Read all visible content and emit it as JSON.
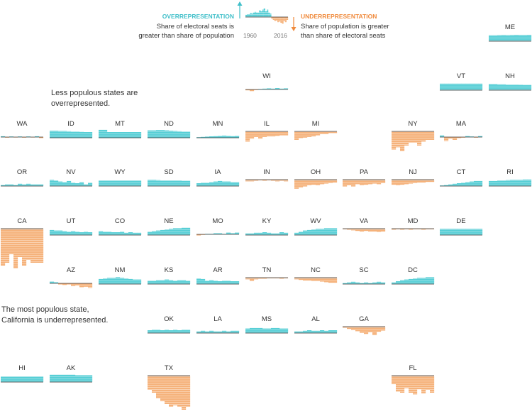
{
  "colors": {
    "over": "#58cfd6",
    "over_stripe": "#a7e5e9",
    "under": "#f5b27b",
    "under_stripe": "#fbd9bc",
    "axis": "#333333",
    "text": "#333333"
  },
  "legend": {
    "over_title": "OVERREPRESENTATION",
    "over_desc_1": "Share of electoral seats is",
    "over_desc_2": "greater than share of population",
    "under_title": "UNDERREPRESENTATION",
    "under_desc_1": "Share of population is greater",
    "under_desc_2": "than share of electoral seats",
    "year_start": "1960",
    "year_end": "2016"
  },
  "notes": {
    "small_1": "Less populous states are",
    "small_2": "overrepresented.",
    "large_1": "The most populous state,",
    "large_2": "California is underrepresented."
  },
  "chart_data": {
    "type": "small-multiples bar",
    "x_start": 1960,
    "x_end": 2016,
    "value_meaning": "representation gap; positive = over, negative = under (relative units)",
    "legend_example": [
      0.4,
      0.5,
      0.5,
      0.7,
      0.6,
      0.8,
      0.9,
      0.8,
      0.8,
      1.2,
      1.0,
      1.3,
      1.5,
      1.0,
      1.3,
      0.8,
      0.6,
      -0.3,
      -0.5,
      -0.7,
      -0.6,
      -0.9,
      -0.8,
      -1.0,
      -1.2,
      -0.7,
      -0.9,
      -0.5
    ],
    "states": [
      {
        "abbr": "ME",
        "values": [
          1.05,
          1.05,
          1.08,
          1.1,
          1.08,
          1.1,
          1.12,
          1.1,
          1.1,
          1.12
        ]
      },
      {
        "abbr": "WI",
        "values": [
          -0.15,
          -0.3,
          -0.1,
          0.1,
          0.15,
          0.2,
          0.15,
          0.25,
          0.15,
          0.2
        ]
      },
      {
        "abbr": "VT",
        "values": [
          1.15,
          1.15,
          1.15,
          1.15,
          1.15,
          1.15,
          1.15,
          1.15,
          1.15,
          1.15
        ]
      },
      {
        "abbr": "NH",
        "values": [
          1.1,
          1.1,
          1.05,
          1.05,
          1.0,
          1.0,
          1.0,
          0.98,
          0.95,
          0.95
        ]
      },
      {
        "abbr": "WA",
        "values": [
          0.15,
          -0.1,
          0.1,
          -0.05,
          0.1,
          -0.1,
          0.1,
          -0.05,
          0.15,
          -0.2
        ]
      },
      {
        "abbr": "ID",
        "values": [
          1.25,
          1.25,
          1.2,
          1.2,
          1.15,
          1.1,
          1.1,
          1.05,
          1.0,
          1.0
        ]
      },
      {
        "abbr": "MT",
        "values": [
          1.4,
          1.4,
          1.0,
          1.0,
          1.0,
          1.0,
          1.0,
          1.0,
          1.0,
          1.0
        ]
      },
      {
        "abbr": "ND",
        "values": [
          1.3,
          1.3,
          1.35,
          1.35,
          1.3,
          1.25,
          1.2,
          1.15,
          1.1,
          1.1
        ]
      },
      {
        "abbr": "MN",
        "values": [
          0.1,
          0.15,
          0.2,
          0.25,
          0.3,
          0.35,
          0.4,
          0.35,
          0.3,
          0.35
        ]
      },
      {
        "abbr": "IL",
        "values": [
          -1.8,
          -1.3,
          -1.0,
          -1.3,
          -1.0,
          -0.9,
          -0.9,
          -0.8,
          -0.7,
          -0.7
        ]
      },
      {
        "abbr": "MI",
        "values": [
          -1.5,
          -1.2,
          -1.1,
          -1.0,
          -0.9,
          -0.7,
          -0.5,
          -0.5,
          -0.3,
          -0.3
        ]
      },
      {
        "abbr": "NY",
        "values": [
          -3.2,
          -2.8,
          -3.5,
          -2.5,
          -2.0,
          -2.0,
          -2.5,
          -1.8,
          -1.5,
          -1.5
        ]
      },
      {
        "abbr": "MA",
        "values": [
          0.3,
          -0.7,
          -0.3,
          -0.5,
          -0.2,
          -0.1,
          0.2,
          0.1,
          -0.1,
          0.2
        ]
      },
      {
        "abbr": "OR",
        "values": [
          0.2,
          0.3,
          0.3,
          0.2,
          0.4,
          0.3,
          0.4,
          0.3,
          0.3,
          0.3
        ]
      },
      {
        "abbr": "NV",
        "values": [
          1.1,
          1.0,
          0.8,
          0.7,
          0.9,
          0.6,
          0.5,
          0.7,
          0.3,
          0.6
        ]
      },
      {
        "abbr": "WY",
        "values": [
          1.0,
          1.0,
          1.0,
          1.0,
          1.0,
          1.0,
          1.0,
          1.0,
          1.0,
          1.0
        ]
      },
      {
        "abbr": "SD",
        "values": [
          1.1,
          1.1,
          1.05,
          1.0,
          1.0,
          1.0,
          1.0,
          1.0,
          0.95,
          0.95
        ]
      },
      {
        "abbr": "IA",
        "values": [
          0.5,
          0.6,
          0.6,
          0.7,
          0.8,
          0.9,
          0.8,
          0.8,
          0.7,
          0.7
        ]
      },
      {
        "abbr": "IN",
        "values": [
          -0.3,
          -0.3,
          -0.2,
          -0.1,
          -0.2,
          -0.1,
          -0.2,
          -0.3,
          -0.2,
          -0.3
        ]
      },
      {
        "abbr": "OH",
        "values": [
          -1.6,
          -1.4,
          -1.2,
          -1.0,
          -0.9,
          -1.0,
          -0.8,
          -0.7,
          -0.6,
          -0.5
        ]
      },
      {
        "abbr": "PA",
        "values": [
          -1.2,
          -1.0,
          -1.2,
          -0.8,
          -1.0,
          -0.9,
          -0.8,
          -0.7,
          -0.8,
          -0.6
        ]
      },
      {
        "abbr": "NJ",
        "values": [
          -0.9,
          -1.0,
          -0.9,
          -0.8,
          -0.7,
          -0.6,
          -0.5,
          -0.5,
          -0.4,
          -0.4
        ]
      },
      {
        "abbr": "CT",
        "values": [
          0.1,
          0.2,
          0.3,
          0.4,
          0.5,
          0.6,
          0.7,
          0.8,
          0.9,
          0.9
        ]
      },
      {
        "abbr": "RI",
        "values": [
          0.9,
          0.9,
          1.0,
          1.0,
          1.05,
          1.1,
          1.1,
          1.1,
          1.15,
          1.15
        ]
      },
      {
        "abbr": "CA",
        "values": [
          -6.5,
          -6.0,
          -4.5,
          -7.0,
          -5.0,
          -6.5,
          -5.5,
          -6.0,
          -6.0,
          -6.0
        ]
      },
      {
        "abbr": "UT",
        "values": [
          0.9,
          0.8,
          0.8,
          0.7,
          0.6,
          0.7,
          0.6,
          0.5,
          0.6,
          0.5
        ]
      },
      {
        "abbr": "CO",
        "values": [
          0.7,
          0.6,
          0.6,
          0.5,
          0.5,
          0.6,
          0.4,
          0.5,
          0.4,
          0.4
        ]
      },
      {
        "abbr": "NE",
        "values": [
          0.6,
          0.7,
          0.8,
          0.9,
          1.0,
          1.1,
          1.2,
          1.2,
          1.3,
          1.3
        ]
      },
      {
        "abbr": "MO",
        "values": [
          -0.2,
          -0.1,
          0.1,
          0.1,
          0.2,
          0.2,
          0.1,
          0.3,
          0.2,
          0.3
        ]
      },
      {
        "abbr": "KY",
        "values": [
          0.3,
          0.3,
          0.4,
          0.4,
          0.5,
          0.4,
          0.3,
          0.3,
          0.5,
          0.4
        ]
      },
      {
        "abbr": "WV",
        "values": [
          0.4,
          0.6,
          0.8,
          0.9,
          1.0,
          1.1,
          1.1,
          1.2,
          1.2,
          1.2
        ]
      },
      {
        "abbr": "VA",
        "values": [
          -0.1,
          -0.2,
          -0.3,
          -0.4,
          -0.5,
          -0.4,
          -0.5,
          -0.5,
          -0.6,
          -0.5
        ]
      },
      {
        "abbr": "MD",
        "values": [
          -0.2,
          -0.1,
          -0.2,
          -0.1,
          -0.2,
          -0.1,
          -0.1,
          -0.2,
          -0.1,
          -0.1
        ]
      },
      {
        "abbr": "DE",
        "values": [
          1.1,
          1.1,
          1.1,
          1.1,
          1.1,
          1.1,
          1.1,
          1.1,
          1.1,
          1.1
        ]
      },
      {
        "abbr": "AZ",
        "values": [
          0.3,
          0.2,
          -0.2,
          -0.3,
          -0.2,
          -0.5,
          -0.4,
          -0.7,
          -0.6,
          -0.8
        ]
      },
      {
        "abbr": "NM",
        "values": [
          0.9,
          1.0,
          1.1,
          1.1,
          1.2,
          1.1,
          1.0,
          0.9,
          0.8,
          0.8
        ]
      },
      {
        "abbr": "KS",
        "values": [
          0.6,
          0.6,
          0.7,
          0.7,
          0.8,
          0.7,
          0.6,
          0.7,
          0.7,
          0.6
        ]
      },
      {
        "abbr": "AR",
        "values": [
          1.0,
          0.9,
          0.6,
          0.7,
          0.6,
          0.5,
          0.6,
          0.6,
          0.5,
          0.5
        ]
      },
      {
        "abbr": "TN",
        "values": [
          -0.3,
          -0.6,
          -0.3,
          -0.2,
          -0.2,
          -0.1,
          -0.1,
          -0.1,
          -0.2,
          -0.1
        ]
      },
      {
        "abbr": "NC",
        "values": [
          -0.3,
          -0.4,
          -0.5,
          -0.5,
          -0.6,
          -0.6,
          -0.7,
          -0.8,
          -0.9,
          -0.9
        ]
      },
      {
        "abbr": "SC",
        "values": [
          0.2,
          0.3,
          0.4,
          0.3,
          0.2,
          0.3,
          0.2,
          0.3,
          0.4,
          0.3
        ]
      },
      {
        "abbr": "DC",
        "values": [
          0.3,
          0.5,
          0.7,
          0.8,
          0.9,
          1.0,
          1.1,
          1.1,
          1.2,
          1.2
        ]
      },
      {
        "abbr": "OK",
        "values": [
          0.5,
          0.6,
          0.6,
          0.5,
          0.6,
          0.5,
          0.6,
          0.5,
          0.6,
          0.6
        ]
      },
      {
        "abbr": "LA",
        "values": [
          0.3,
          0.4,
          0.3,
          0.4,
          0.3,
          0.3,
          0.4,
          0.3,
          0.4,
          0.4
        ]
      },
      {
        "abbr": "MS",
        "values": [
          0.8,
          0.9,
          0.9,
          0.9,
          0.8,
          0.8,
          0.9,
          0.9,
          0.8,
          0.8
        ]
      },
      {
        "abbr": "AL",
        "values": [
          0.3,
          0.3,
          0.4,
          0.5,
          0.4,
          0.4,
          0.5,
          0.4,
          0.5,
          0.5
        ]
      },
      {
        "abbr": "GA",
        "values": [
          -0.2,
          -0.4,
          -0.6,
          -0.8,
          -1.1,
          -1.3,
          -1.0,
          -1.5,
          -0.9,
          -0.7
        ]
      },
      {
        "abbr": "HI",
        "values": [
          1.0,
          1.0,
          1.0,
          1.0,
          1.0,
          1.0,
          1.0,
          1.0,
          1.0,
          1.0
        ]
      },
      {
        "abbr": "AK",
        "values": [
          1.3,
          1.3,
          1.3,
          1.3,
          1.3,
          1.3,
          1.2,
          1.2,
          1.2,
          1.2
        ]
      },
      {
        "abbr": "TX",
        "values": [
          -2.5,
          -3.0,
          -4.0,
          -4.5,
          -5.0,
          -5.5,
          -5.2,
          -5.5,
          -6.0,
          -5.5
        ]
      },
      {
        "abbr": "FL",
        "values": [
          -1.5,
          -2.8,
          -3.0,
          -2.2,
          -3.0,
          -3.3,
          -2.4,
          -3.1,
          -2.5,
          -3.0
        ]
      }
    ]
  }
}
